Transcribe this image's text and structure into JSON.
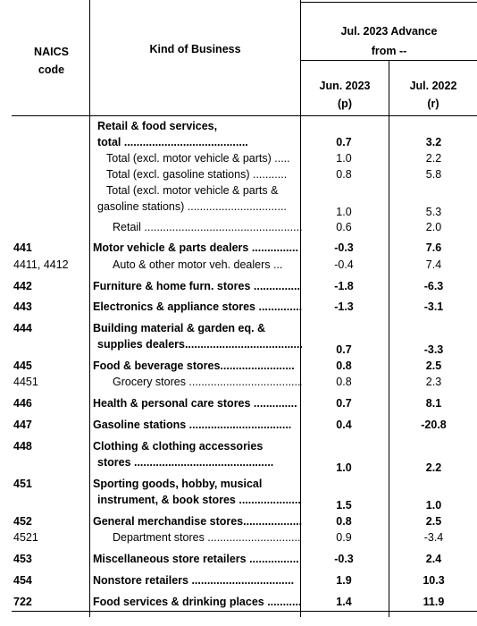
{
  "header": {
    "naics_line1": "NAICS",
    "naics_line2": "code",
    "kind": "Kind of Business",
    "advance_line1": "Jul. 2023 Advance",
    "advance_line2": "from --",
    "col1_line1": "Jun. 2023",
    "col1_line2": "(p)",
    "col2_line1": "Jul. 2022",
    "col2_line2": "(r)"
  },
  "rows": [
    {
      "code": "",
      "lines": [
        "Retail & food services,",
        "total ........................................"
      ],
      "v1": "0.7",
      "v2": "3.2",
      "bold": true
    },
    {
      "code": "",
      "lines": [
        "Total (excl. motor vehicle & parts) ....."
      ],
      "v1": "1.0",
      "v2": "2.2",
      "bold": false
    },
    {
      "code": "",
      "lines": [
        "Total (excl. gasoline stations) ..........."
      ],
      "v1": "0.8",
      "v2": "5.8",
      "bold": false
    },
    {
      "code": "",
      "lines": [
        "Total (excl. motor vehicle & parts &",
        "gasoline stations) ................................"
      ],
      "v1": "1.0",
      "v2": "5.3",
      "bold": false
    },
    {
      "code": "",
      "lines": [
        "Retail ...................................................."
      ],
      "v1": "0.6",
      "v2": "2.0",
      "bold": false
    },
    {
      "code": "441",
      "lines": [
        "Motor vehicle & parts dealers ..............."
      ],
      "v1": "-0.3",
      "v2": "7.6",
      "bold": true
    },
    {
      "code": "4411, 4412",
      "lines": [
        "Auto & other motor veh. dealers ..."
      ],
      "v1": "-0.4",
      "v2": "7.4",
      "bold": false
    },
    {
      "code": "442",
      "lines": [
        "Furniture & home furn. stores ..............."
      ],
      "v1": "-1.8",
      "v2": "-6.3",
      "bold": true
    },
    {
      "code": "443",
      "lines": [
        "Electronics & appliance stores .............."
      ],
      "v1": "-1.3",
      "v2": "-3.1",
      "bold": true
    },
    {
      "code": "444",
      "lines": [
        "Building material & garden eq. &",
        "supplies dealers........................................"
      ],
      "v1": "0.7",
      "v2": "-3.3",
      "bold": true
    },
    {
      "code": "445",
      "lines": [
        "Food & beverage stores........................"
      ],
      "v1": "0.8",
      "v2": "2.5",
      "bold": true
    },
    {
      "code": "4451",
      "lines": [
        "Grocery stores ....................................."
      ],
      "v1": "0.8",
      "v2": "2.3",
      "bold": false
    },
    {
      "code": "446",
      "lines": [
        "Health & personal care stores .............."
      ],
      "v1": "0.7",
      "v2": "8.1",
      "bold": true
    },
    {
      "code": "447",
      "lines": [
        "Gasoline stations ................................."
      ],
      "v1": "0.4",
      "v2": "-20.8",
      "bold": true
    },
    {
      "code": "448",
      "lines": [
        "Clothing & clothing accessories",
        "stores ............................................."
      ],
      "v1": "1.0",
      "v2": "2.2",
      "bold": true
    },
    {
      "code": "451",
      "lines": [
        "Sporting goods, hobby, musical",
        "instrument, & book stores ...................."
      ],
      "v1": "1.5",
      "v2": "1.0",
      "bold": true
    },
    {
      "code": "452",
      "lines": [
        "General merchandise stores...................."
      ],
      "v1": "0.8",
      "v2": "2.5",
      "bold": true
    },
    {
      "code": "4521",
      "lines": [
        "Department stores .............................."
      ],
      "v1": "0.9",
      "v2": "-3.4",
      "bold": false
    },
    {
      "code": "453",
      "lines": [
        "Miscellaneous store retailers ................"
      ],
      "v1": "-0.3",
      "v2": "2.4",
      "bold": true
    },
    {
      "code": "454",
      "lines": [
        "Nonstore retailers ................................."
      ],
      "v1": "1.9",
      "v2": "10.3",
      "bold": true
    },
    {
      "code": "722",
      "lines": [
        "Food services & drinking places ............."
      ],
      "v1": "1.4",
      "v2": "11.9",
      "bold": true
    }
  ]
}
